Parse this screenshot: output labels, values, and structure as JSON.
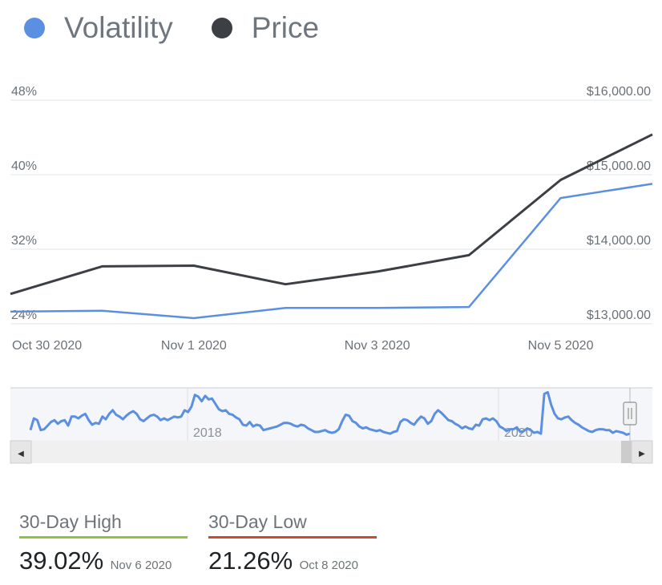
{
  "legend": {
    "volatility": {
      "label": "Volatility",
      "color": "#5b8fe1"
    },
    "price": {
      "label": "Price",
      "color": "#3c3f44"
    }
  },
  "chart_data": {
    "type": "line",
    "x": [
      "Oct 30 2020",
      "Oct 31 2020",
      "Nov 1 2020",
      "Nov 2 2020",
      "Nov 3 2020",
      "Nov 4 2020",
      "Nov 5 2020",
      "Nov 6 2020"
    ],
    "x_tick_labels": [
      "Oct 30 2020",
      "Nov 1 2020",
      "Nov 3 2020",
      "Nov 5 2020"
    ],
    "series": [
      {
        "name": "Volatility",
        "axis": "left",
        "color": "#5b8fe1",
        "values": [
          25.3,
          25.4,
          24.6,
          25.7,
          25.7,
          25.8,
          37.5,
          39.02
        ]
      },
      {
        "name": "Price",
        "axis": "right",
        "color": "#3c3f44",
        "values": [
          13400,
          13770,
          13780,
          13530,
          13700,
          13920,
          14930,
          15540
        ]
      }
    ],
    "y_left": {
      "ticks": [
        "48%",
        "40%",
        "32%",
        "24%"
      ],
      "range": [
        24,
        48
      ]
    },
    "y_right": {
      "ticks": [
        "$16,000.00",
        "$15,000.00",
        "$14,000.00",
        "$13,000.00"
      ],
      "range": [
        13000,
        16000
      ]
    },
    "navigator": {
      "year_labels": [
        "2018",
        "2020"
      ],
      "volatility_series": [
        40,
        53,
        51,
        40,
        41,
        45,
        49,
        51,
        47,
        50,
        51,
        45,
        55,
        55,
        53,
        56,
        58,
        51,
        46,
        48,
        47,
        55,
        52,
        58,
        62,
        57,
        55,
        52,
        56,
        59,
        61,
        58,
        52,
        50,
        53,
        56,
        57,
        55,
        51,
        53,
        51,
        53,
        55,
        54,
        55,
        62,
        60,
        66,
        79,
        77,
        72,
        78,
        74,
        75,
        69,
        63,
        61,
        62,
        58,
        57,
        54,
        52,
        46,
        45,
        49,
        44,
        46,
        45,
        40,
        41,
        42,
        43,
        44,
        46,
        48,
        48,
        47,
        45,
        44,
        46,
        45,
        42,
        40,
        38,
        38,
        39,
        40,
        38,
        37,
        38,
        41,
        50,
        57,
        56,
        50,
        48,
        44,
        42,
        43,
        41,
        40,
        39,
        40,
        38,
        37,
        36,
        38,
        39,
        49,
        52,
        51,
        48,
        46,
        51,
        55,
        53,
        47,
        50,
        58,
        62,
        59,
        55,
        51,
        50,
        47,
        45,
        42,
        44,
        42,
        41,
        46,
        45,
        52,
        53,
        51,
        53,
        50,
        44,
        42,
        39,
        41,
        41,
        43,
        38,
        39,
        42,
        40,
        37,
        38,
        36,
        80,
        82,
        68,
        58,
        53,
        52,
        54,
        55,
        51,
        48,
        46,
        43,
        41,
        39,
        38,
        40,
        41,
        41,
        40,
        40,
        37,
        39,
        38,
        37,
        35,
        36
      ]
    }
  },
  "scrollbar": {
    "left_arrow": "◀",
    "right_arrow": "▶"
  },
  "stats": {
    "high": {
      "label": "30-Day High",
      "value": "39.02%",
      "date": "Nov 6 2020",
      "color": "#8cc63f"
    },
    "low": {
      "label": "30-Day Low",
      "value": "21.26%",
      "date": "Oct 8 2020",
      "color": "#d0492f"
    }
  }
}
